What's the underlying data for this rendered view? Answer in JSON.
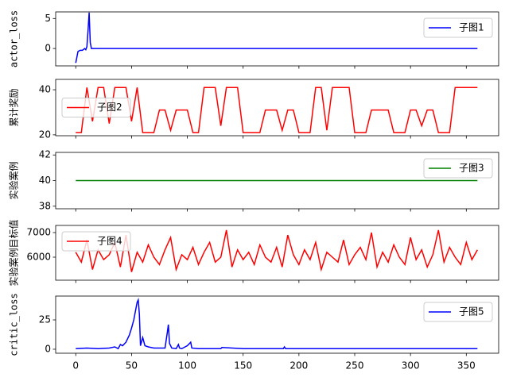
{
  "chart_data": [
    {
      "type": "line",
      "ylabel": "actor_loss",
      "legend": "upper right",
      "x": [
        0,
        2,
        4,
        6,
        8,
        9,
        10,
        11,
        12,
        13,
        14,
        20,
        100,
        200,
        300,
        360
      ],
      "series": [
        {
          "name": "子图1",
          "color": "#0000ff",
          "values": [
            -2.4,
            -0.5,
            -0.3,
            -0.3,
            0,
            -0.2,
            0.3,
            3,
            6,
            1,
            0,
            0,
            0,
            0,
            0,
            0
          ]
        }
      ],
      "xlim": [
        -18,
        379
      ],
      "xticks": [
        0,
        50,
        100,
        150,
        200,
        250,
        300,
        350
      ],
      "ylim": [
        -2.9,
        6.1
      ],
      "yticks": [
        0,
        5
      ]
    },
    {
      "type": "line",
      "ylabel": "累计奖励",
      "legend": "center left",
      "x": [
        0,
        5,
        10,
        15,
        20,
        25,
        30,
        35,
        40,
        45,
        50,
        55,
        60,
        65,
        70,
        75,
        80,
        85,
        90,
        95,
        100,
        105,
        110,
        115,
        120,
        125,
        130,
        135,
        140,
        145,
        150,
        155,
        160,
        165,
        170,
        175,
        180,
        185,
        190,
        195,
        200,
        205,
        210,
        215,
        220,
        225,
        230,
        235,
        240,
        245,
        250,
        255,
        260,
        265,
        270,
        275,
        280,
        285,
        290,
        295,
        300,
        305,
        310,
        315,
        320,
        325,
        330,
        335,
        340,
        345,
        350,
        355,
        360
      ],
      "series": [
        {
          "name": "子图2",
          "color": "#ff0000",
          "values": [
            21,
            21,
            41,
            26,
            41,
            41,
            25,
            41,
            41,
            41,
            26,
            41,
            21,
            21,
            21,
            31,
            31,
            22,
            31,
            31,
            31,
            21,
            21,
            41,
            41,
            41,
            24,
            41,
            41,
            41,
            21,
            21,
            21,
            21,
            31,
            31,
            31,
            22,
            31,
            31,
            21,
            21,
            21,
            41,
            41,
            22,
            41,
            41,
            41,
            41,
            21,
            21,
            21,
            31,
            31,
            31,
            31,
            21,
            21,
            21,
            31,
            31,
            24,
            31,
            31,
            21,
            21,
            21,
            41,
            41,
            41,
            41,
            41
          ]
        }
      ],
      "xlim": [
        -18,
        379
      ],
      "xticks": [
        0,
        50,
        100,
        150,
        200,
        250,
        300,
        350
      ],
      "ylim": [
        19.6,
        44.6
      ],
      "yticks": [
        20,
        40
      ]
    },
    {
      "type": "line",
      "ylabel": "实验案例",
      "legend": "upper right",
      "x": [
        0,
        360
      ],
      "series": [
        {
          "name": "子图3",
          "color": "#008000",
          "values": [
            40,
            40
          ]
        }
      ],
      "xlim": [
        -18,
        379
      ],
      "xticks": [
        0,
        50,
        100,
        150,
        200,
        250,
        300,
        350
      ],
      "ylim": [
        37.8,
        42.2
      ],
      "yticks": [
        38,
        40,
        42
      ]
    },
    {
      "type": "line",
      "ylabel": "实验案例目标值",
      "legend": "upper left",
      "x": [
        0,
        5,
        10,
        15,
        20,
        25,
        30,
        35,
        40,
        45,
        50,
        55,
        60,
        65,
        70,
        75,
        80,
        85,
        90,
        95,
        100,
        105,
        110,
        115,
        120,
        125,
        130,
        135,
        140,
        145,
        150,
        155,
        160,
        165,
        170,
        175,
        180,
        185,
        190,
        195,
        200,
        205,
        210,
        215,
        220,
        225,
        230,
        235,
        240,
        245,
        250,
        255,
        260,
        265,
        270,
        275,
        280,
        285,
        290,
        295,
        300,
        305,
        310,
        315,
        320,
        325,
        330,
        335,
        340,
        345,
        350,
        355,
        360
      ],
      "series": [
        {
          "name": "子图4",
          "color": "#ff0000",
          "values": [
            6200,
            5800,
            6700,
            5500,
            6300,
            5900,
            6100,
            6600,
            5600,
            6900,
            5400,
            6200,
            5800,
            6500,
            6000,
            5700,
            6300,
            6800,
            5500,
            6100,
            5900,
            6400,
            5700,
            6200,
            6600,
            5800,
            6000,
            7100,
            5600,
            6300,
            5900,
            6200,
            5700,
            6500,
            6000,
            5800,
            6400,
            5600,
            6900,
            6100,
            5700,
            6300,
            5900,
            6600,
            5500,
            6200,
            6000,
            5800,
            6700,
            5700,
            6100,
            6400,
            5900,
            7000,
            5600,
            6200,
            5800,
            6500,
            6000,
            5700,
            6800,
            5900,
            6300,
            5600,
            6100,
            7100,
            5800,
            6400,
            6000,
            5700,
            6600,
            5900,
            6300
          ]
        }
      ],
      "xlim": [
        -18,
        379
      ],
      "xticks": [
        0,
        50,
        100,
        150,
        200,
        250,
        300,
        350
      ],
      "ylim": [
        5065,
        7290
      ],
      "yticks": [
        6000,
        7000
      ]
    },
    {
      "type": "line",
      "ylabel": "critic_loss",
      "legend": "upper right",
      "x": [
        0,
        10,
        20,
        30,
        35,
        38,
        40,
        42,
        45,
        48,
        50,
        52,
        53,
        55,
        56,
        57,
        58,
        60,
        62,
        65,
        70,
        80,
        82,
        83,
        84,
        86,
        90,
        92,
        93,
        95,
        100,
        102,
        103,
        104,
        110,
        130,
        131,
        150,
        186,
        187,
        188,
        200,
        300,
        360
      ],
      "series": [
        {
          "name": "子图5",
          "color": "#0000ff",
          "values": [
            0.5,
            1,
            0.5,
            1,
            2,
            0.5,
            4,
            3,
            6,
            12,
            18,
            25,
            30,
            40,
            42,
            30,
            3,
            10,
            3,
            2,
            1,
            1,
            14,
            21,
            5,
            1,
            0.5,
            4,
            1,
            0.5,
            3,
            5,
            6,
            1,
            0.5,
            0.5,
            1.5,
            0.5,
            0.5,
            2,
            0.5,
            0.5,
            0.5,
            0.5
          ]
        }
      ],
      "xlim": [
        -18,
        379
      ],
      "xticks": [
        0,
        50,
        100,
        150,
        200,
        250,
        300,
        350
      ],
      "ylim": [
        -3.4,
        45.3
      ],
      "yticks": [
        0,
        25
      ]
    }
  ]
}
